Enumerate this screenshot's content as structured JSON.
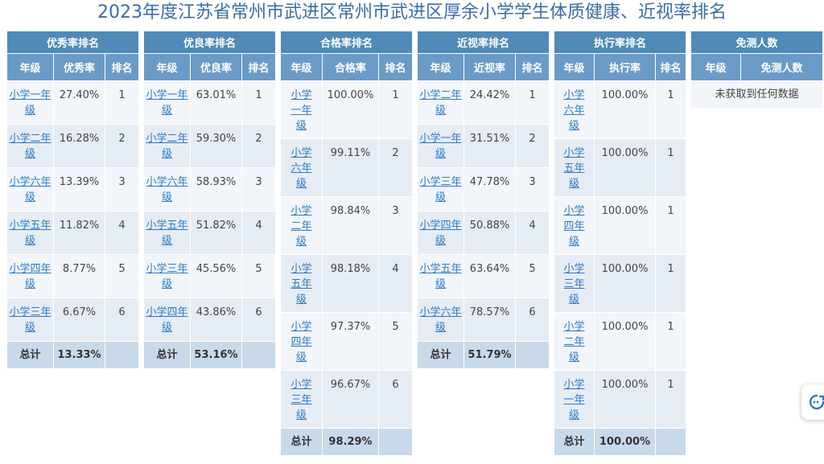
{
  "title": "2023年度江苏省常州市武进区常州市武进区厚余小学学生体质健康、近视率排名",
  "panels": {
    "excellent": {
      "header": "优秀率排名",
      "cols": [
        "年级",
        "优秀率",
        "排名"
      ],
      "rows": [
        {
          "grade": "小学一年级",
          "rate": "27.40%",
          "rank": "1"
        },
        {
          "grade": "小学二年级",
          "rate": "16.28%",
          "rank": "2"
        },
        {
          "grade": "小学六年级",
          "rate": "13.39%",
          "rank": "3"
        },
        {
          "grade": "小学五年级",
          "rate": "11.82%",
          "rank": "4"
        },
        {
          "grade": "小学四年级",
          "rate": "8.77%",
          "rank": "5"
        },
        {
          "grade": "小学三年级",
          "rate": "6.67%",
          "rank": "6"
        }
      ],
      "total_label": "总计",
      "total_value": "13.33%"
    },
    "good": {
      "header": "优良率排名",
      "cols": [
        "年级",
        "优良率",
        "排名"
      ],
      "rows": [
        {
          "grade": "小学一年级",
          "rate": "63.01%",
          "rank": "1"
        },
        {
          "grade": "小学二年级",
          "rate": "59.30%",
          "rank": "2"
        },
        {
          "grade": "小学六年级",
          "rate": "58.93%",
          "rank": "3"
        },
        {
          "grade": "小学五年级",
          "rate": "51.82%",
          "rank": "4"
        },
        {
          "grade": "小学三年级",
          "rate": "45.56%",
          "rank": "5"
        },
        {
          "grade": "小学四年级",
          "rate": "43.86%",
          "rank": "6"
        }
      ],
      "total_label": "总计",
      "total_value": "53.16%"
    },
    "pass": {
      "header": "合格率排名",
      "cols": [
        "年级",
        "合格率",
        "排名"
      ],
      "rows": [
        {
          "grade": "小学一年级",
          "rate": "100.00%",
          "rank": "1"
        },
        {
          "grade": "小学六年级",
          "rate": "99.11%",
          "rank": "2"
        },
        {
          "grade": "小学二年级",
          "rate": "98.84%",
          "rank": "3"
        },
        {
          "grade": "小学五年级",
          "rate": "98.18%",
          "rank": "4"
        },
        {
          "grade": "小学四年级",
          "rate": "97.37%",
          "rank": "5"
        },
        {
          "grade": "小学三年级",
          "rate": "96.67%",
          "rank": "6"
        }
      ],
      "total_label": "总计",
      "total_value": "98.29%"
    },
    "myopia": {
      "header": "近视率排名",
      "cols": [
        "年级",
        "近视率",
        "排名"
      ],
      "rows": [
        {
          "grade": "小学二年级",
          "rate": "24.42%",
          "rank": "1"
        },
        {
          "grade": "小学一年级",
          "rate": "31.51%",
          "rank": "2"
        },
        {
          "grade": "小学三年级",
          "rate": "47.78%",
          "rank": "3"
        },
        {
          "grade": "小学四年级",
          "rate": "50.88%",
          "rank": "4"
        },
        {
          "grade": "小学五年级",
          "rate": "63.64%",
          "rank": "5"
        },
        {
          "grade": "小学六年级",
          "rate": "78.57%",
          "rank": "6"
        }
      ],
      "total_label": "总计",
      "total_value": "51.79%"
    },
    "execution": {
      "header": "执行率排名",
      "cols": [
        "年级",
        "执行率",
        "排名"
      ],
      "rows": [
        {
          "grade": "小学六年级",
          "rate": "100.00%",
          "rank": "1"
        },
        {
          "grade": "小学五年级",
          "rate": "100.00%",
          "rank": "1"
        },
        {
          "grade": "小学四年级",
          "rate": "100.00%",
          "rank": "1"
        },
        {
          "grade": "小学三年级",
          "rate": "100.00%",
          "rank": "1"
        },
        {
          "grade": "小学二年级",
          "rate": "100.00%",
          "rank": "1"
        },
        {
          "grade": "小学一年级",
          "rate": "100.00%",
          "rank": "1"
        }
      ],
      "total_label": "总计",
      "total_value": "100.00%"
    },
    "exempt": {
      "header": "免测人数",
      "cols": [
        "年级",
        "免测人数"
      ],
      "empty_message": "未获取到任何数据"
    }
  },
  "float_button_icon": "refresh-chat-icon"
}
